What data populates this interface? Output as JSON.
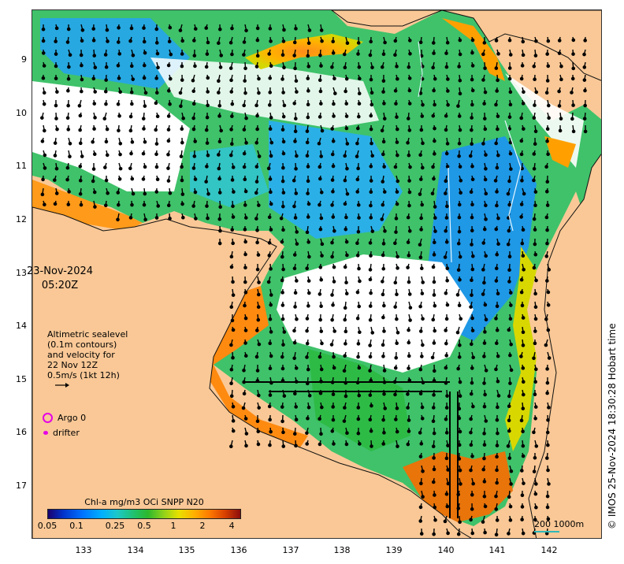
{
  "map": {
    "date": "23-Nov-2024",
    "time": "05:20Z",
    "legend_lines": [
      "Altimetric sealevel",
      "(0.1m contours)",
      "and velocity for",
      "22 Nov 12Z",
      "0.5m/s (1kt 12h)"
    ],
    "argo_label": "Argo 0",
    "drifter_label": "drifter",
    "colorbar_title": "Chl-a mg/m3 OCi SNPP N20",
    "colorbar_ticks": [
      "0.05",
      "0.1",
      "0.25",
      "0.5",
      "1",
      "2",
      "4"
    ],
    "colorbar_tick_values": [
      0.05,
      0.1,
      0.25,
      0.5,
      1,
      2,
      4
    ],
    "colorbar_range": [
      0.05,
      5
    ],
    "scale_label": "200  1000m",
    "credit": "© IMOS 25-Nov-2024 18:30:28 Hobart time",
    "lat_ticks": [
      "9",
      "10",
      "11",
      "12",
      "13",
      "14",
      "15",
      "16",
      "17"
    ],
    "lon_ticks": [
      "133",
      "134",
      "135",
      "136",
      "137",
      "138",
      "139",
      "140",
      "141",
      "142"
    ],
    "colors": {
      "land": "#f9c896",
      "argo": "#e600e6",
      "scale_bar": "#2fb8b8"
    }
  }
}
